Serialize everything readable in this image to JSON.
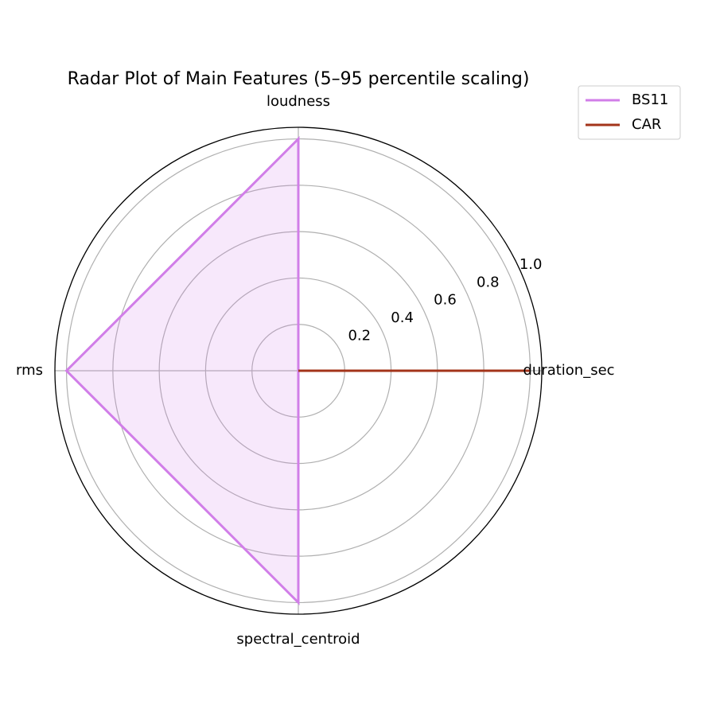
{
  "chart_data": {
    "type": "radar",
    "title": "Radar Plot of Main Features (5–95 percentile scaling)",
    "categories": [
      "duration_sec",
      "loudness",
      "rms",
      "spectral_centroid"
    ],
    "series": [
      {
        "name": "BS11",
        "color": "#d17ee8",
        "values": [
          0,
          1,
          1,
          1
        ],
        "fill": true
      },
      {
        "name": "CAR",
        "color": "#a3341a",
        "values": [
          1,
          0,
          0,
          0
        ],
        "fill": false
      }
    ],
    "rlim": [
      0,
      1.05
    ],
    "rticks": [
      0.2,
      0.4,
      0.6,
      0.8,
      {
        "value": 1,
        "label": "1.0"
      }
    ],
    "grid": true,
    "legend": "upper right"
  }
}
